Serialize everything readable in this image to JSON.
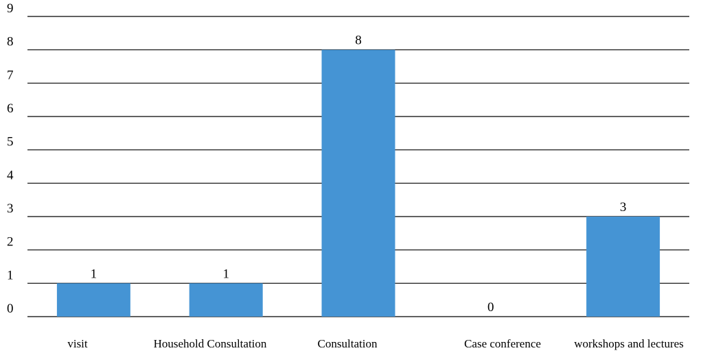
{
  "chart_data": {
    "type": "bar",
    "categories": [
      "visit",
      "Household Consultation",
      "Consultation",
      "Case conference",
      "workshops and lectures"
    ],
    "values": [
      1,
      1,
      8,
      0,
      3
    ],
    "data_labels": [
      "1",
      "1",
      "8",
      "0",
      "3"
    ],
    "title": "",
    "xlabel": "",
    "ylabel": "",
    "ylim": [
      0,
      9
    ],
    "yticks": [
      "0",
      "1",
      "2",
      "3",
      "4",
      "5",
      "6",
      "7",
      "8",
      "9"
    ],
    "grid": true,
    "legend": "none",
    "colors": {
      "bar": "#4594d4",
      "grid": "#000000",
      "text": "#000000"
    }
  }
}
